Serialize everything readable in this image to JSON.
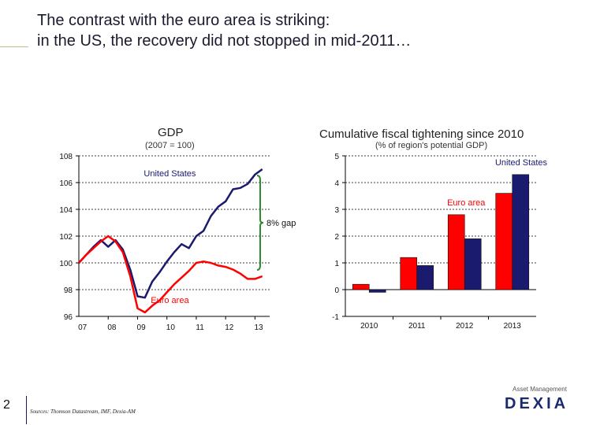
{
  "slide": {
    "title_line1": "The contrast with the euro area is striking:",
    "title_line2": "in the US, the recovery did not stopped in mid-2011…",
    "page_number": "2",
    "sources": "Sources: Thomson Datastream, IMF, Dexia-AM",
    "logo_text": "DEXIA",
    "logo_subtext": "Asset Management"
  },
  "colors": {
    "us": "#1a1a6e",
    "euro": "#ff0000",
    "gap": "#2e8b2e",
    "axis": "#000000",
    "grid": "#000000"
  },
  "chart_data": [
    {
      "type": "line",
      "title": "GDP",
      "subtitle": "(2007 = 100)",
      "ylim": [
        96,
        108
      ],
      "yticks": [
        "96",
        "98",
        "100",
        "102",
        "104",
        "106",
        "108"
      ],
      "xlim": [
        2007,
        2013.5
      ],
      "xticks": [
        {
          "label": "07",
          "value": 2007.125
        },
        {
          "label": "08",
          "value": 2008.125
        },
        {
          "label": "09",
          "value": 2009.125
        },
        {
          "label": "10",
          "value": 2010.125
        },
        {
          "label": "11",
          "value": 2011.125
        },
        {
          "label": "12",
          "value": 2012.125
        },
        {
          "label": "13",
          "value": 2013.125
        }
      ],
      "series": [
        {
          "name": "United States",
          "x": [
            2007.0,
            2007.25,
            2007.5,
            2007.75,
            2008.0,
            2008.25,
            2008.5,
            2008.75,
            2009.0,
            2009.25,
            2009.5,
            2009.75,
            2010.0,
            2010.25,
            2010.5,
            2010.75,
            2011.0,
            2011.25,
            2011.5,
            2011.75,
            2012.0,
            2012.25,
            2012.5,
            2012.75,
            2013.0,
            2013.25
          ],
          "values": [
            100.0,
            100.6,
            101.2,
            101.7,
            101.2,
            101.7,
            101.0,
            99.5,
            97.5,
            97.4,
            98.6,
            99.3,
            100.1,
            100.8,
            101.4,
            101.1,
            102.0,
            102.4,
            103.5,
            104.2,
            104.6,
            105.5,
            105.6,
            105.9,
            106.6,
            107.0
          ]
        },
        {
          "name": "Euro area",
          "x": [
            2007.0,
            2007.25,
            2007.5,
            2007.75,
            2008.0,
            2008.25,
            2008.5,
            2008.75,
            2009.0,
            2009.25,
            2009.5,
            2009.75,
            2010.0,
            2010.25,
            2010.5,
            2010.75,
            2011.0,
            2011.25,
            2011.5,
            2011.75,
            2012.0,
            2012.25,
            2012.5,
            2012.75,
            2013.0,
            2013.25
          ],
          "values": [
            100.0,
            100.6,
            101.1,
            101.6,
            102.0,
            101.6,
            100.8,
            99.0,
            96.6,
            96.3,
            96.8,
            97.2,
            97.8,
            98.4,
            98.9,
            99.4,
            100.0,
            100.1,
            100.0,
            99.8,
            99.7,
            99.5,
            99.2,
            98.8,
            98.8,
            99.0
          ]
        }
      ],
      "annotations": [
        {
          "text": "United States",
          "series": "United States"
        },
        {
          "text": "Euro area",
          "series": "Euro area"
        },
        {
          "text": "8% gap"
        }
      ]
    },
    {
      "type": "bar",
      "title": "Cumulative fiscal tightening since 2010",
      "subtitle": "(% of region's potential GDP)",
      "categories": [
        "2010",
        "2011",
        "2012",
        "2013"
      ],
      "ylim": [
        -1,
        5
      ],
      "yticks": [
        "-1",
        "0",
        "1",
        "2",
        "3",
        "4",
        "5"
      ],
      "series": [
        {
          "name": "Euro area",
          "values": [
            0.2,
            1.2,
            2.8,
            3.6
          ]
        },
        {
          "name": "United States",
          "values": [
            -0.1,
            0.9,
            1.9,
            4.3
          ]
        }
      ],
      "annotations": [
        {
          "text": "United States",
          "series": "United States"
        },
        {
          "text": "Euro area",
          "series": "Euro area"
        }
      ]
    }
  ]
}
